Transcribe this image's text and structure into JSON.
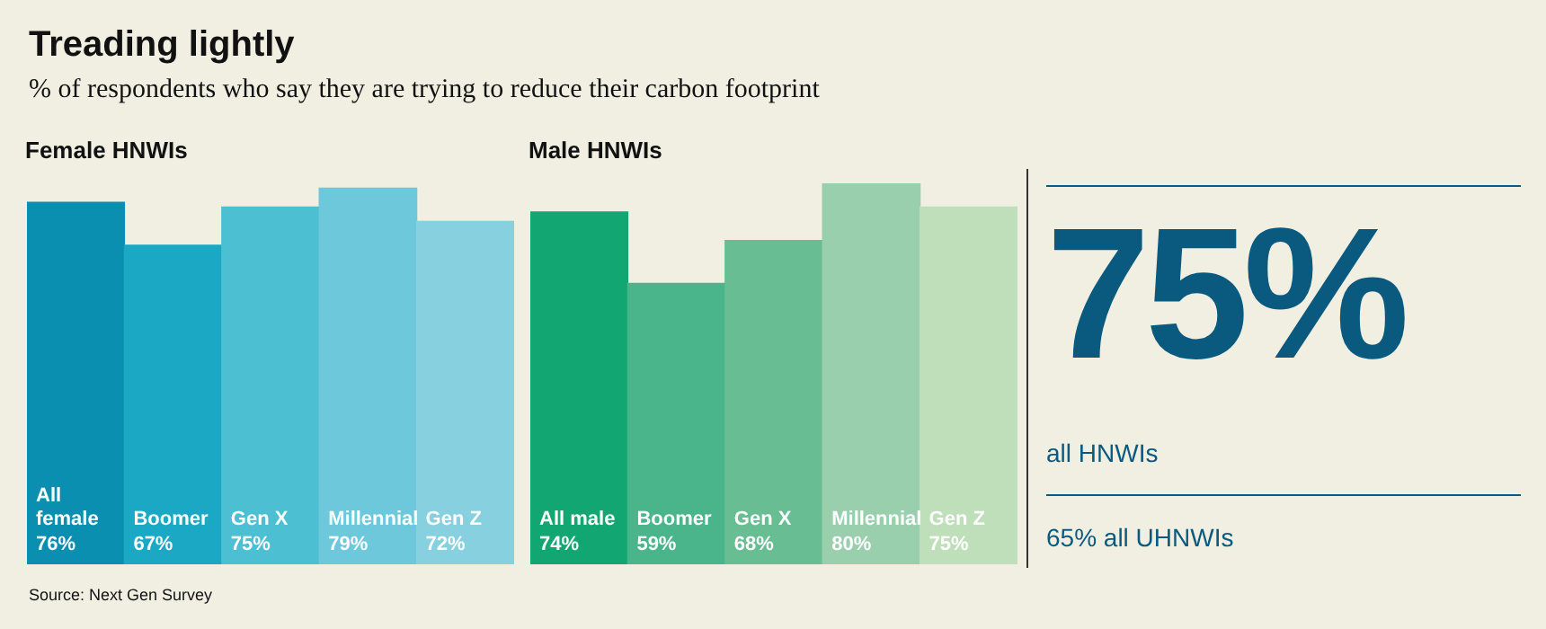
{
  "chart_data": [
    {
      "type": "other",
      "title": "Treading lightly",
      "subtitle": "% of respondents who say they are trying to reduce their carbon footprint",
      "annotations": [
        "Source: Next Gen Survey"
      ]
    },
    {
      "type": "bar",
      "title": "Female HNWIs",
      "categories": [
        "All female",
        "Boomer",
        "Gen X",
        "Millennial",
        "Gen Z"
      ],
      "values": [
        76,
        67,
        75,
        79,
        72
      ],
      "value_labels": [
        "76%",
        "67%",
        "75%",
        "79%",
        "72%"
      ],
      "colors": [
        "#0a8fb0",
        "#1aa8c4",
        "#4cbfd3",
        "#6cc8da",
        "#86d0e0"
      ],
      "ylim": [
        0,
        80
      ]
    },
    {
      "type": "bar",
      "title": "Male HNWIs",
      "categories": [
        "All male",
        "Boomer",
        "Gen X",
        "Millennial",
        "Gen Z"
      ],
      "values": [
        74,
        59,
        68,
        80,
        75
      ],
      "value_labels": [
        "74%",
        "59%",
        "68%",
        "80%",
        "75%"
      ],
      "colors": [
        "#12a673",
        "#4ab48a",
        "#68bd93",
        "#99cfad",
        "#bfdfba"
      ],
      "ylim": [
        0,
        80
      ]
    },
    {
      "type": "other",
      "annotations": [
        "75%",
        "all HNWIs",
        "65% all UHNWIs"
      ]
    }
  ]
}
